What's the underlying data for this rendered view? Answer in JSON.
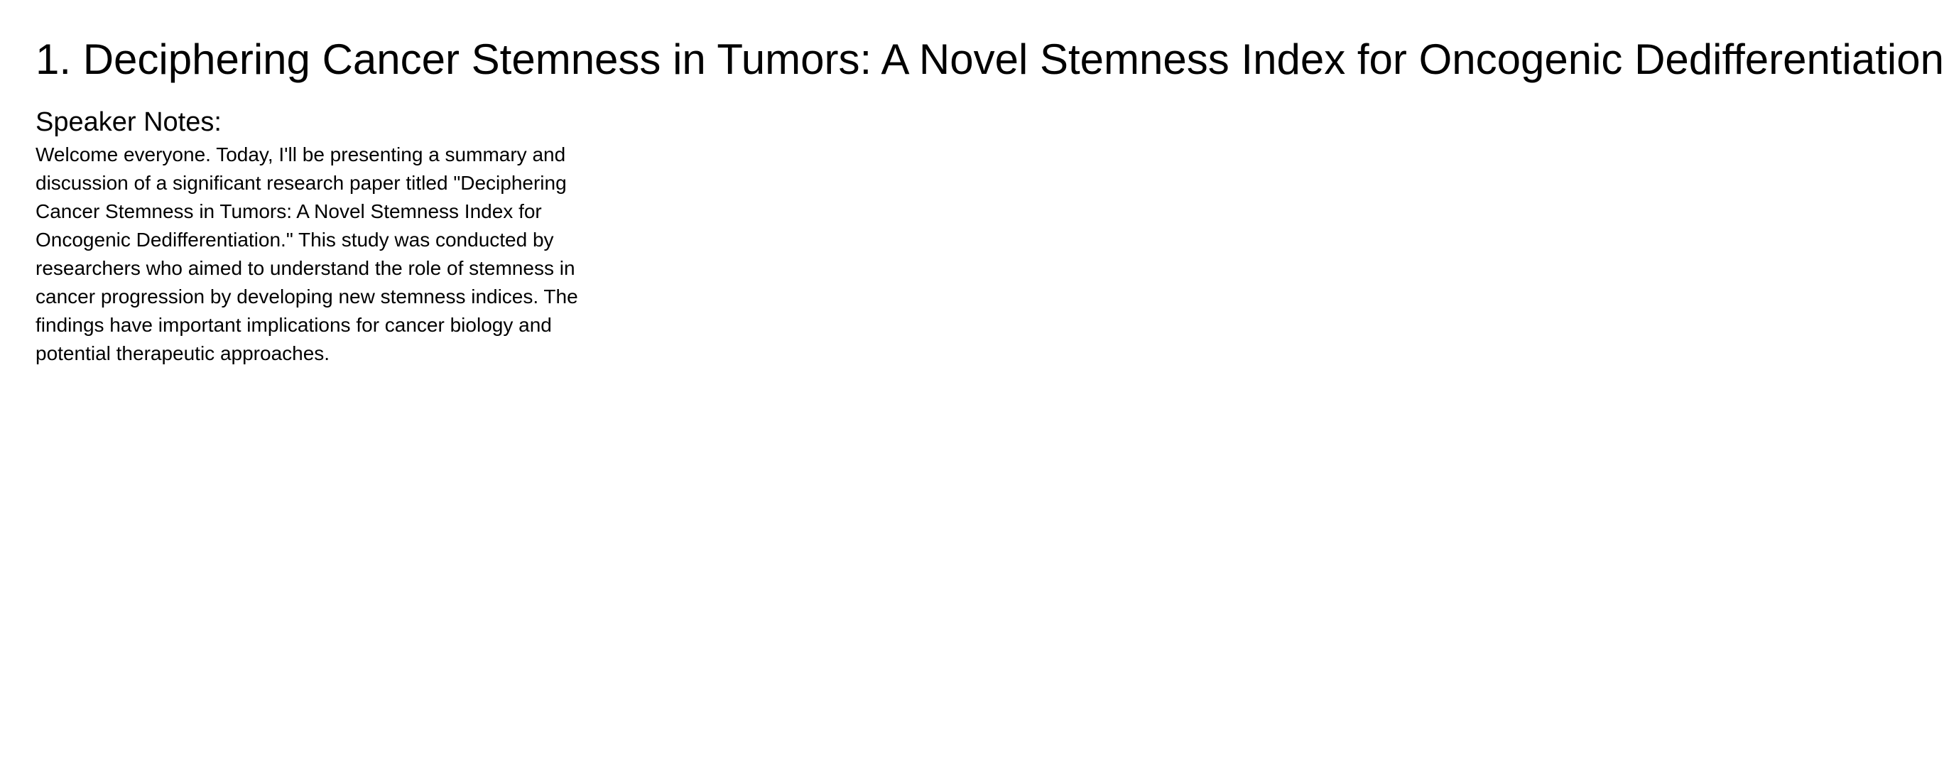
{
  "slide": {
    "title": "1. Deciphering Cancer Stemness in Tumors: A Novel Stemness Index for Oncogenic Dedifferentiation"
  },
  "notes": {
    "heading": "Speaker Notes:",
    "body": "Welcome everyone. Today, I'll be presenting a summary and discussion of a significant research paper titled \"Deciphering Cancer Stemness in Tumors: A Novel Stemness Index for Oncogenic Dedifferentiation.\" This study was conducted by researchers who aimed to understand the role of stemness in cancer progression by developing new stemness indices. The findings have important implications for cancer biology and potential therapeutic approaches."
  }
}
